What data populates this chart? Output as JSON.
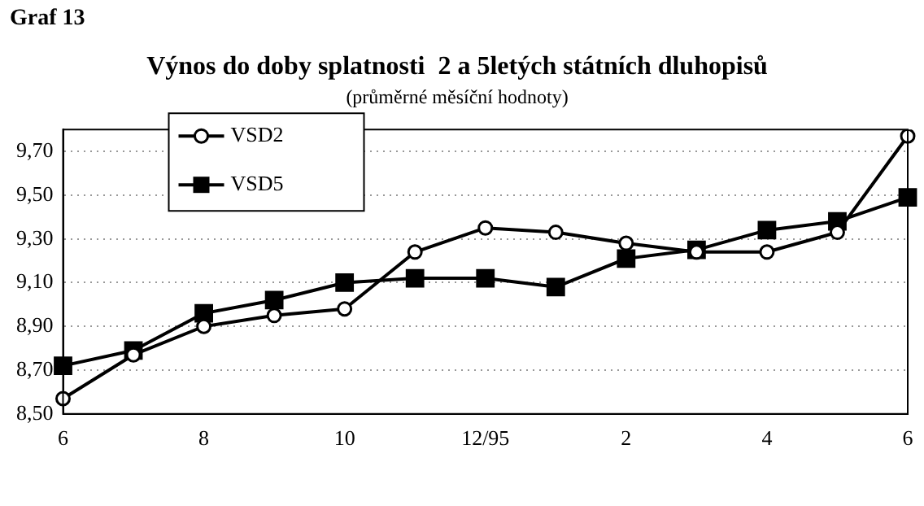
{
  "chart_data": {
    "type": "line",
    "title": "Výnos do doby splatnosti  2 a 5letých státních dluhopisů",
    "subtitle": "(průměrné měsíční hodnoty)",
    "annotations": [
      "Graf 13"
    ],
    "categories": [
      "6",
      null,
      "8",
      null,
      "10",
      null,
      "12/95",
      null,
      "2",
      null,
      "4",
      null,
      "6"
    ],
    "series": [
      {
        "name": "VSD2",
        "color": "#000000",
        "marker": "circle",
        "values": [
          8.57,
          8.77,
          8.9,
          8.95,
          8.98,
          9.24,
          9.35,
          9.33,
          9.28,
          9.24,
          9.24,
          9.33,
          9.77
        ]
      },
      {
        "name": "VSD5",
        "color": "#000000",
        "marker": "square",
        "values": [
          8.72,
          8.79,
          8.96,
          9.02,
          9.1,
          9.12,
          9.12,
          9.08,
          9.21,
          9.25,
          9.34,
          9.38,
          9.49
        ]
      }
    ],
    "ylim": [
      8.5,
      9.8
    ],
    "yticks": [
      {
        "value": 8.5,
        "label": "8,50"
      },
      {
        "value": 8.7,
        "label": "8,70"
      },
      {
        "value": 8.9,
        "label": "8,90"
      },
      {
        "value": 9.1,
        "label": "9,10"
      },
      {
        "value": 9.3,
        "label": "9,30"
      },
      {
        "value": 9.5,
        "label": "9,50"
      },
      {
        "value": 9.7,
        "label": "9,70"
      }
    ],
    "grid": "y",
    "legend": "top left",
    "line_style": "solid"
  }
}
